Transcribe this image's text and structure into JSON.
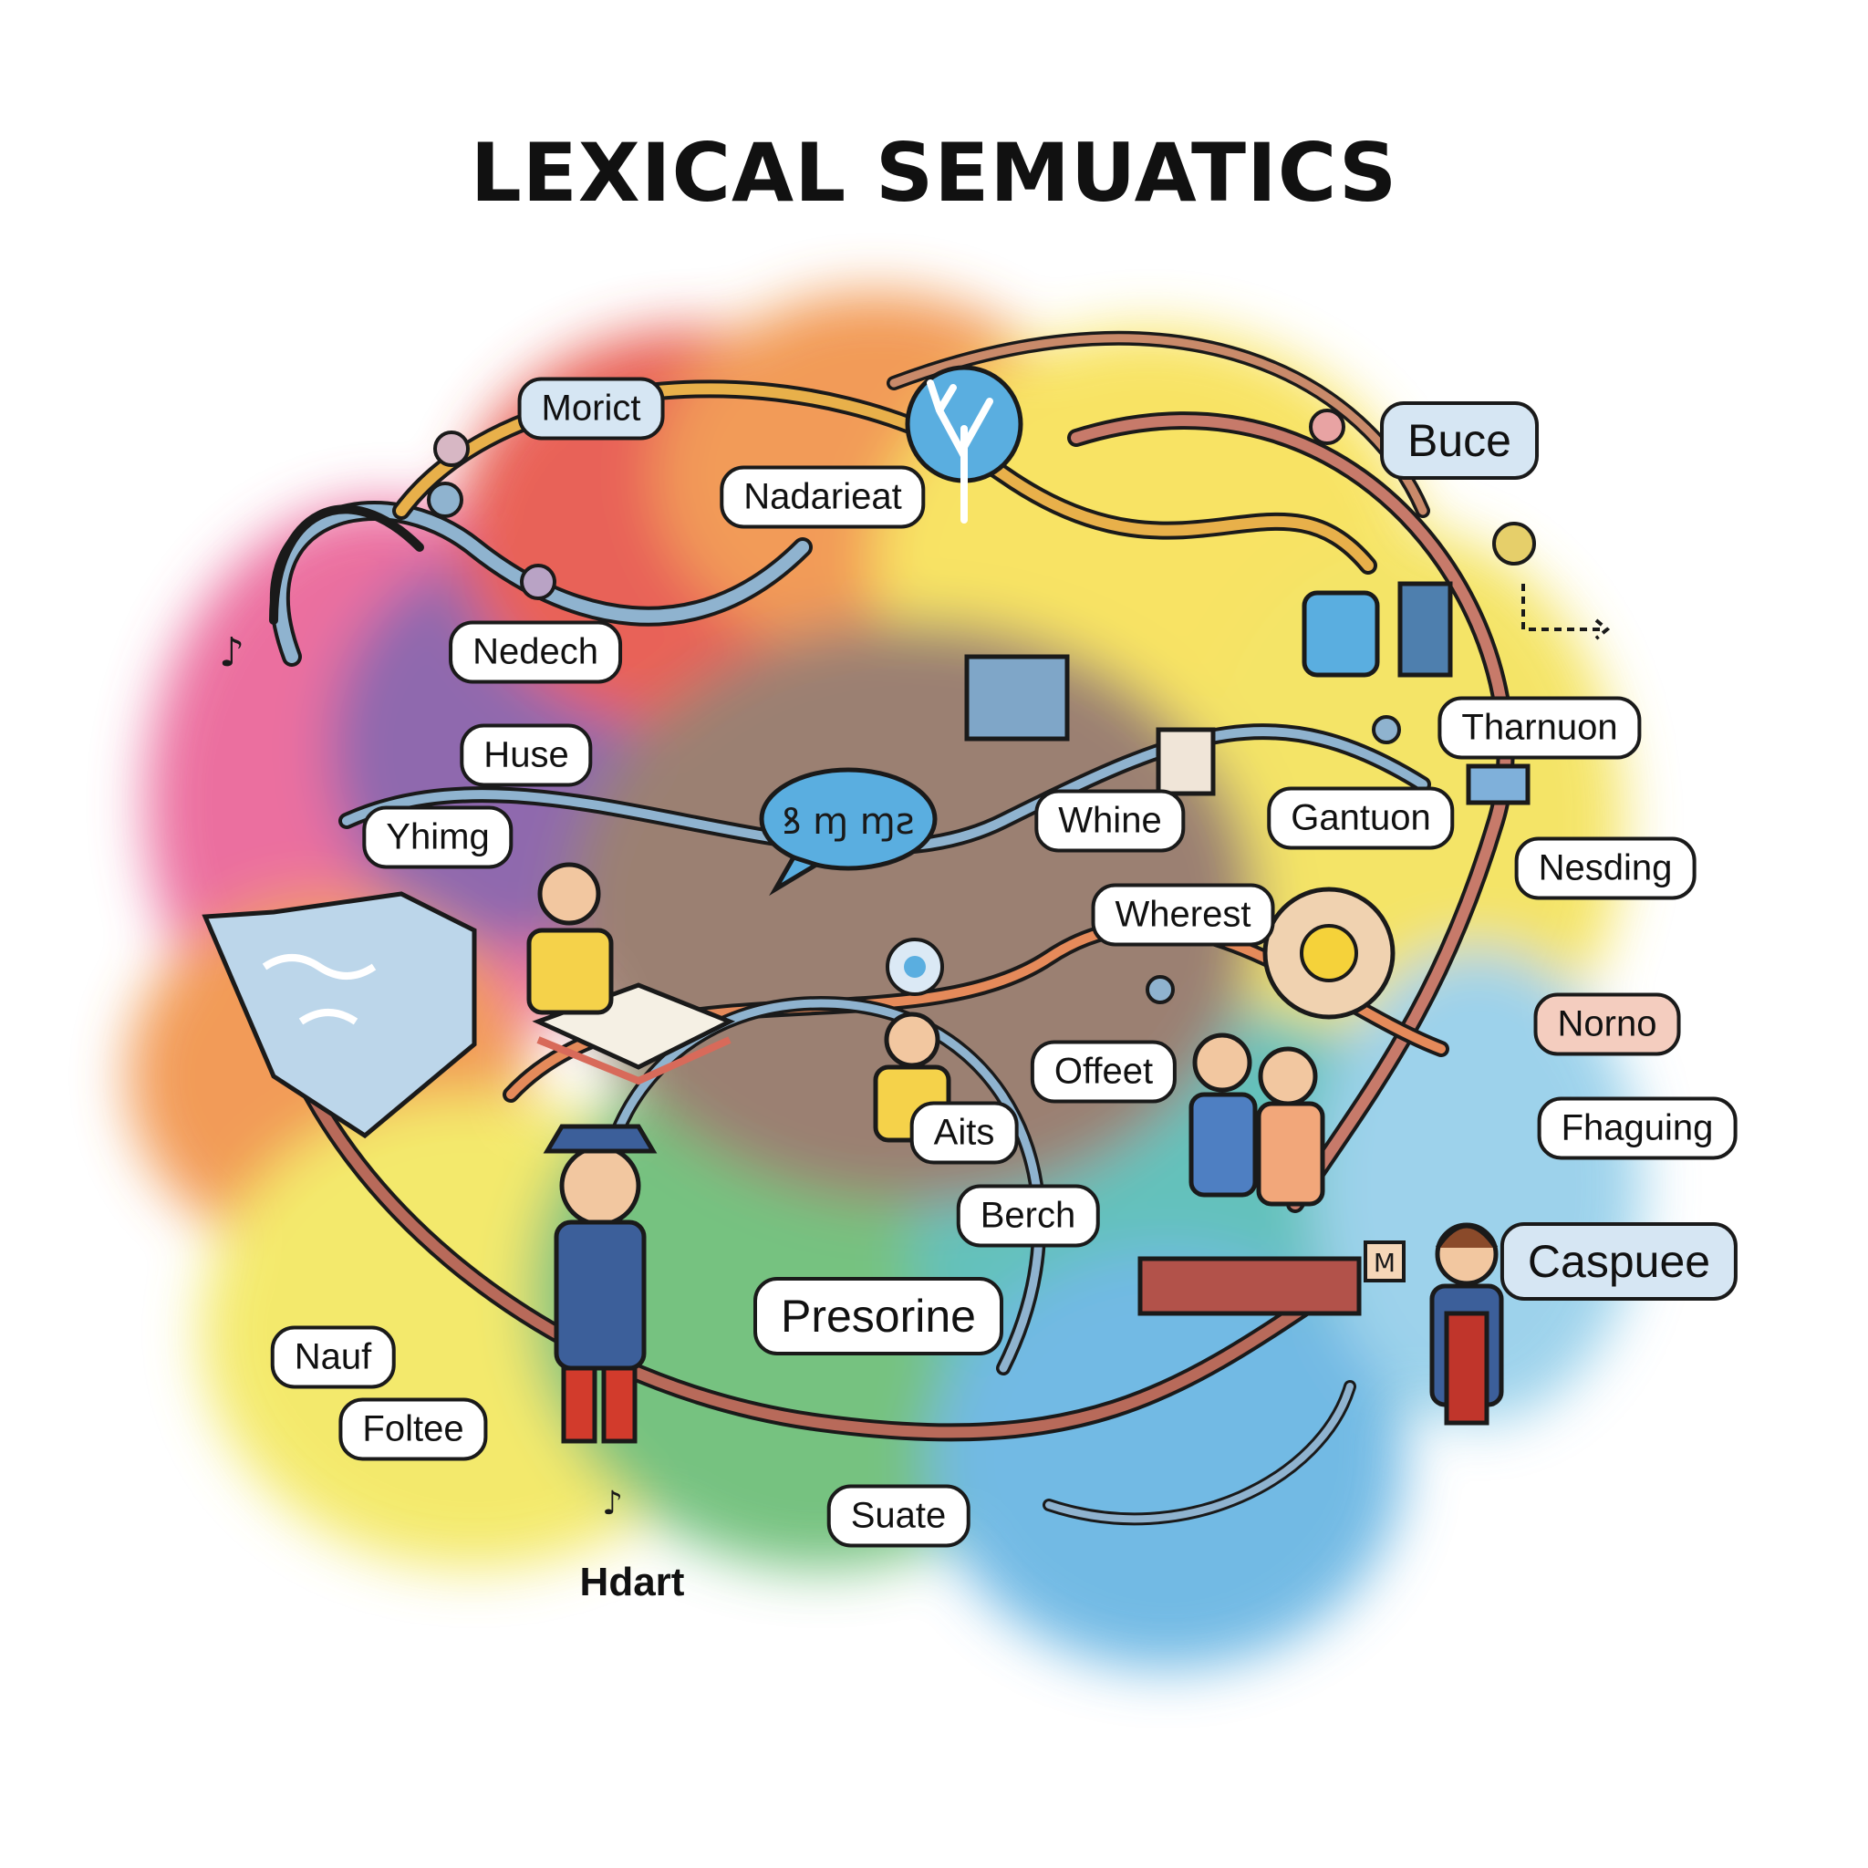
{
  "title": "LEXICAL SEMUATICS",
  "speech_glyphs": "ꝸ ɱ ɱƨ",
  "labels": {
    "moricit": "Morict",
    "nadarieat": "Nadarieat",
    "buce": "Buce",
    "nedech": "Nedech",
    "huse": "Huse",
    "yhimg": "Yhimg",
    "tharnuon": "Tharnuon",
    "whine": "Whine",
    "gantuon": "Gantuon",
    "nesting": "Nesding",
    "wherest": "Wherest",
    "norno": "Norno",
    "offeet": "Offeet",
    "aits": "Aits",
    "fhaguing": "Fhaguing",
    "berch": "Berch",
    "caspuee": "Caspuee",
    "presorine": "Presorine",
    "nauf": "Nauf",
    "foltee": "Foltee",
    "suate": "Suate",
    "hdart": "Hdart"
  },
  "colors": {
    "pink": "#e8578f",
    "orange": "#f08a3a",
    "red": "#e5463a",
    "yellow": "#f7df4a",
    "green": "#5fb86a",
    "blue": "#5aaee0",
    "purple": "#7b4fa0",
    "tube": "#8fb3cf",
    "outline": "#1a1a1a"
  }
}
